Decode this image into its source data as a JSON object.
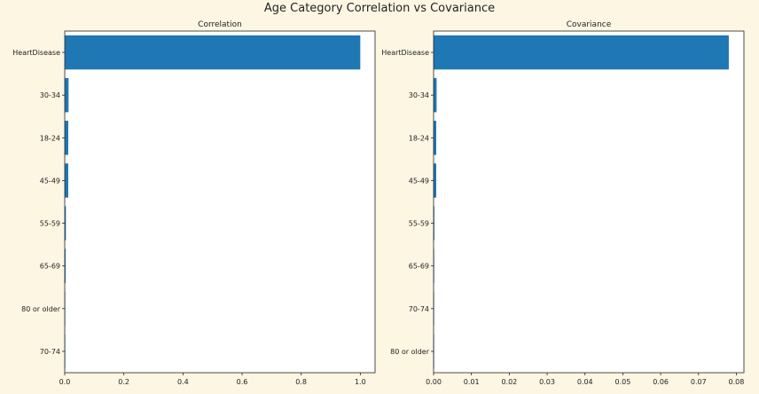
{
  "figure": {
    "title": "Age Category Correlation vs Covariance",
    "background_color": "#fdf6e3",
    "bar_color": "#1f77b4"
  },
  "chart_data": [
    {
      "type": "bar",
      "orientation": "horizontal",
      "title": "Correlation",
      "xlabel": "",
      "ylabel": "",
      "categories": [
        "HeartDisease",
        "30-34",
        "18-24",
        "45-49",
        "55-59",
        "65-69",
        "80 or older",
        "70-74"
      ],
      "values": [
        1.0,
        0.013,
        0.012,
        0.012,
        0.004,
        0.003,
        0.001,
        0.0005
      ],
      "xlim": [
        0.0,
        1.05
      ],
      "xticks": [
        0.0,
        0.2,
        0.4,
        0.6,
        0.8,
        1.0
      ],
      "xtick_labels": [
        "0.0",
        "0.2",
        "0.4",
        "0.6",
        "0.8",
        "1.0"
      ],
      "grid": false,
      "legend": "none"
    },
    {
      "type": "bar",
      "orientation": "horizontal",
      "title": "Covariance",
      "xlabel": "",
      "ylabel": "",
      "categories": [
        "HeartDisease",
        "30-34",
        "18-24",
        "45-49",
        "55-59",
        "65-69",
        "70-74",
        "80 or older"
      ],
      "values": [
        0.078,
        0.0008,
        0.0007,
        0.0007,
        0.0002,
        0.00015,
        5e-05,
        3e-05
      ],
      "xlim": [
        0.0,
        0.082
      ],
      "xticks": [
        0.0,
        0.01,
        0.02,
        0.03,
        0.04,
        0.05,
        0.06,
        0.07,
        0.08
      ],
      "xtick_labels": [
        "0.00",
        "0.01",
        "0.02",
        "0.03",
        "0.04",
        "0.05",
        "0.06",
        "0.07",
        "0.08"
      ],
      "grid": false,
      "legend": "none"
    }
  ]
}
